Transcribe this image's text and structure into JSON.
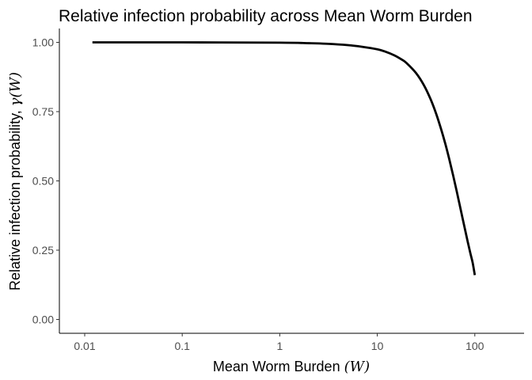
{
  "chart_data": {
    "type": "line",
    "title": "Relative infection probability across Mean Worm Burden",
    "xlabel_text": "Mean Worm Burden ",
    "xlabel_math": "(W)",
    "ylabel_text": "Relative infection probability, ",
    "ylabel_math": "γ(W)",
    "x_scale": "log10",
    "xlim": [
      0.0055,
      320
    ],
    "ylim": [
      -0.05,
      1.05
    ],
    "x_ticks": [
      0.01,
      0.1,
      1,
      10,
      100
    ],
    "x_tick_labels": [
      "0.01",
      "0.1",
      "1",
      "10",
      "100"
    ],
    "y_ticks": [
      0,
      0.25,
      0.5,
      0.75,
      1
    ],
    "y_tick_labels": [
      "0.00",
      "0.25",
      "0.50",
      "0.75",
      "1.00"
    ],
    "grid": false,
    "line_color": "#000000",
    "series": [
      {
        "x": [
          0.012,
          0.1,
          1,
          2,
          3,
          5,
          7,
          10,
          12,
          15,
          18,
          20,
          25,
          30,
          35,
          40,
          45,
          50,
          55,
          60,
          65,
          70,
          75,
          80,
          85,
          90,
          95,
          100
        ],
        "y": [
          1.0,
          1.0,
          0.999,
          0.997,
          0.995,
          0.99,
          0.984,
          0.975,
          0.967,
          0.953,
          0.937,
          0.925,
          0.889,
          0.846,
          0.797,
          0.744,
          0.688,
          0.632,
          0.575,
          0.519,
          0.465,
          0.413,
          0.364,
          0.319,
          0.277,
          0.239,
          0.205,
          0.16
        ]
      }
    ]
  }
}
